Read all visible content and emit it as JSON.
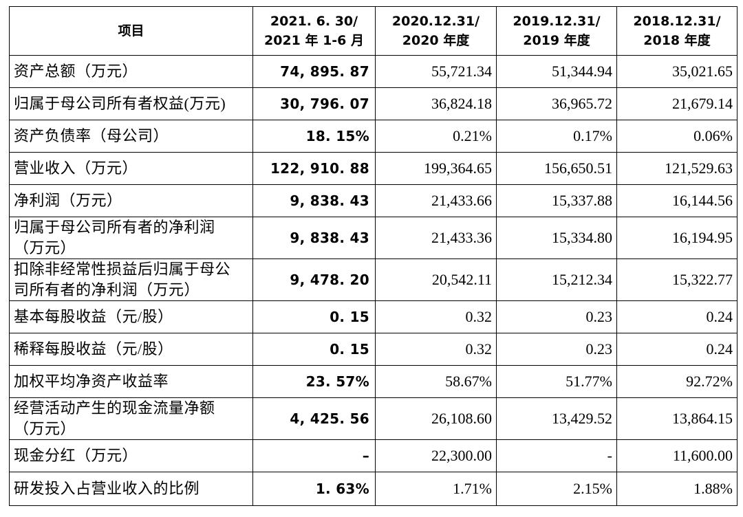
{
  "table": {
    "headers": [
      [
        "项目"
      ],
      [
        "2021. 6. 30/",
        "2021 年 1-6 月"
      ],
      [
        "2020.12.31/",
        "2020 年度"
      ],
      [
        "2019.12.31/",
        "2019 年度"
      ],
      [
        "2018.12.31/",
        "2018 年度"
      ]
    ],
    "rows": [
      {
        "label": [
          "资产总额（万元）"
        ],
        "values": [
          "74, 895. 87",
          "55,721.34",
          "51,344.94",
          "35,021.65"
        ]
      },
      {
        "label": [
          "归属于母公司所有者权益(万元)"
        ],
        "values": [
          "30, 796. 07",
          "36,824.18",
          "36,965.72",
          "21,679.14"
        ]
      },
      {
        "label": [
          "资产负债率（母公司）"
        ],
        "values": [
          "18. 15%",
          "0.21%",
          "0.17%",
          "0.06%"
        ]
      },
      {
        "label": [
          "营业收入（万元）"
        ],
        "values": [
          "122, 910. 88",
          "199,364.65",
          "156,650.51",
          "121,529.63"
        ]
      },
      {
        "label": [
          "净利润（万元）"
        ],
        "values": [
          "9, 838. 43",
          "21,433.66",
          "15,337.88",
          "16,144.56"
        ]
      },
      {
        "label": [
          "归属于母公司所有者的净利润",
          "（万元）"
        ],
        "values": [
          "9, 838. 43",
          "21,433.36",
          "15,334.80",
          "16,194.95"
        ]
      },
      {
        "label": [
          "扣除非经常性损益后归属于母公",
          "司所有者的净利润（万元）"
        ],
        "values": [
          "9, 478. 20",
          "20,542.11",
          "15,212.34",
          "15,322.77"
        ]
      },
      {
        "label": [
          "基本每股收益（元/股）"
        ],
        "values": [
          "0. 15",
          "0.32",
          "0.23",
          "0.24"
        ]
      },
      {
        "label": [
          "稀释每股收益（元/股）"
        ],
        "values": [
          "0. 15",
          "0.32",
          "0.23",
          "0.24"
        ]
      },
      {
        "label": [
          "加权平均净资产收益率"
        ],
        "values": [
          "23. 57%",
          "58.67%",
          "51.77%",
          "92.72%"
        ]
      },
      {
        "label": [
          "经营活动产生的现金流量净额",
          "（万元）"
        ],
        "values": [
          "4, 425. 56",
          "26,108.60",
          "13,429.52",
          "13,864.15"
        ]
      },
      {
        "label": [
          "现金分红（万元）"
        ],
        "values": [
          "–",
          "22,300.00",
          "-",
          "11,600.00"
        ]
      },
      {
        "label": [
          "研发投入占营业收入的比例"
        ],
        "values": [
          "1. 63%",
          "1.71%",
          "2.15%",
          "1.88%"
        ]
      }
    ]
  }
}
